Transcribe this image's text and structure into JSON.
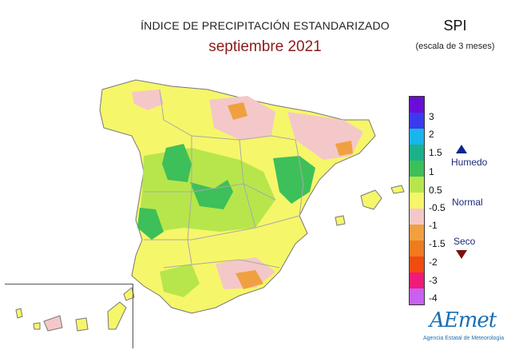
{
  "header": {
    "title": "ÍNDICE DE PRECIPITACIÓN ESTANDARIZADO",
    "subtitle": "septiembre 2021",
    "index_name": "SPI",
    "index_scale": "(escala de 3 meses)"
  },
  "legend": {
    "colors": [
      "#6a0dd6",
      "#3a3af0",
      "#1ab5ea",
      "#1db08a",
      "#3dbf5a",
      "#b7e64c",
      "#f6f66a",
      "#f4c8c8",
      "#f0a040",
      "#f07a1e",
      "#f04b10",
      "#f01a78",
      "#c860f0"
    ],
    "ticks": [
      "3",
      "2",
      "1.5",
      "1",
      "0.5",
      "-0.5",
      "-1",
      "-1.5",
      "-2",
      "-3",
      "-4"
    ],
    "categories": {
      "wet": "Humedo",
      "normal": "Normal",
      "dry": "Seco"
    }
  },
  "logo": {
    "name": "AEmet",
    "subtitle": "Agencia Estatal de Meteorología"
  }
}
